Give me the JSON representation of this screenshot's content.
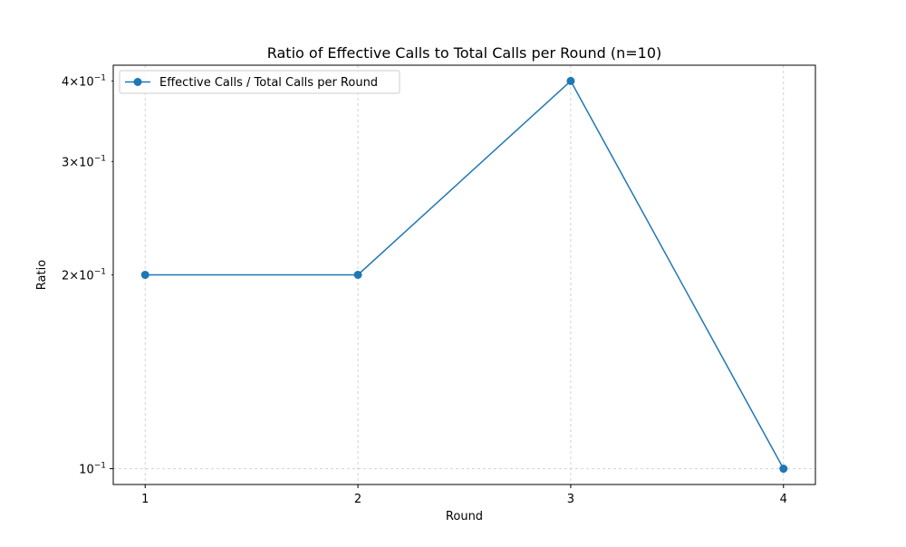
{
  "chart_data": {
    "type": "line",
    "title": "Ratio of Effective Calls to Total Calls per Round (n=10)",
    "xlabel": "Round",
    "ylabel": "Ratio",
    "x": [
      1,
      2,
      3,
      4
    ],
    "series": [
      {
        "name": "Effective Calls / Total Calls per Round",
        "values": [
          0.2,
          0.2,
          0.4,
          0.1
        ]
      }
    ],
    "xlim": [
      0.85,
      4.15
    ],
    "ylim": [
      0.0945,
      0.4232
    ],
    "yscale": "log",
    "x_ticks": [
      1,
      2,
      3,
      4
    ],
    "x_tick_labels": [
      "1",
      "2",
      "3",
      "4"
    ],
    "y_ticks": [
      {
        "value": 0.1,
        "label_base": "10",
        "label_exp": "−1"
      },
      {
        "value": 0.2,
        "label_base": "2×10",
        "label_exp": "−1"
      },
      {
        "value": 0.3,
        "label_base": "3×10",
        "label_exp": "−1"
      },
      {
        "value": 0.4,
        "label_base": "4×10",
        "label_exp": "−1"
      }
    ],
    "grid": true,
    "legend_position": "top-left",
    "colors": {
      "line": "#1f77b4",
      "grid": "#c8c8c8",
      "axes": "#000000"
    },
    "marker": "circle"
  }
}
